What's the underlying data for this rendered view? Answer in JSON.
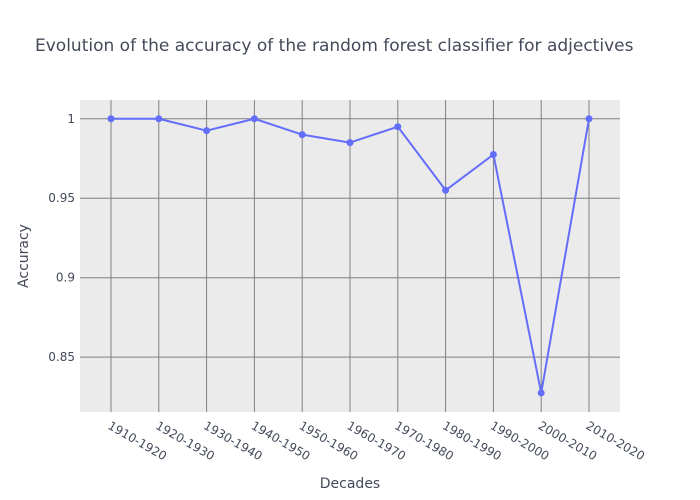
{
  "chart_data": {
    "type": "line",
    "title": "Evolution of the accuracy of the random forest classifier for adjectives",
    "xlabel": "Decades",
    "ylabel": "Accuracy",
    "categories": [
      "1910-1920",
      "1920-1930",
      "1930-1940",
      "1940-1950",
      "1950-1960",
      "1960-1970",
      "1970-1980",
      "1980-1990",
      "1990-2000",
      "2000-2010",
      "2010-2020"
    ],
    "yticks": [
      0.85,
      0.9,
      0.95,
      1
    ],
    "ytick_labels": [
      "0.85",
      "0.9",
      "0.95",
      "1"
    ],
    "ylim": [
      0.8155,
      1.0118
    ],
    "grid": true,
    "series": [
      {
        "values": [
          1.0,
          1.0,
          0.9925,
          1.0,
          0.99,
          0.985,
          0.995,
          0.955,
          0.9775,
          0.8275,
          1.0
        ],
        "color": "#636efa"
      }
    ]
  },
  "colors": {
    "plot_background": "#ebebeb",
    "grid": "#808080",
    "text": "#444a5a"
  }
}
